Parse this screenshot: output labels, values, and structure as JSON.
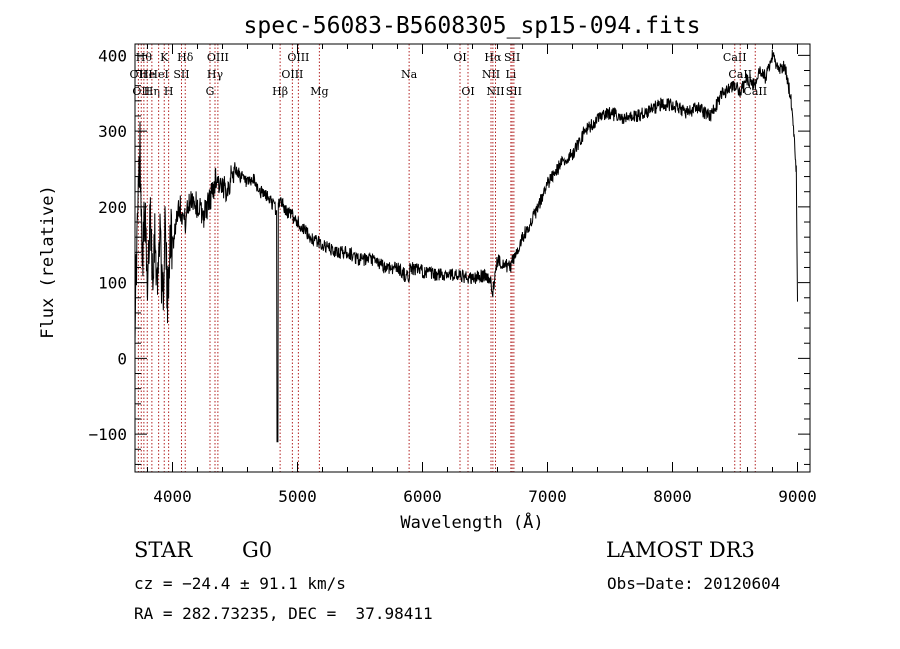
{
  "chart_data": {
    "type": "line",
    "title": "spec-56083-B5608305_sp15-094.fits",
    "xlabel": "Wavelength (Å)",
    "ylabel": "Flux (relative)",
    "xlim": [
      3700,
      9100
    ],
    "ylim": [
      -150,
      415
    ],
    "x_ticks": [
      4000,
      5000,
      6000,
      7000,
      8000,
      9000
    ],
    "y_ticks": [
      -100,
      0,
      100,
      200,
      300,
      400
    ],
    "x_tick_labels": [
      "4000",
      "5000",
      "6000",
      "7000",
      "8000",
      "9000"
    ],
    "y_tick_labels": [
      "−100",
      "0",
      "100",
      "200",
      "300",
      "400"
    ],
    "series": [
      {
        "name": "flux",
        "x": [
          3700,
          3720,
          3740,
          3760,
          3780,
          3800,
          3820,
          3840,
          3860,
          3880,
          3900,
          3920,
          3940,
          3960,
          3980,
          4000,
          4050,
          4100,
          4150,
          4200,
          4250,
          4300,
          4350,
          4400,
          4450,
          4500,
          4550,
          4600,
          4650,
          4700,
          4750,
          4800,
          4830,
          4840,
          4850,
          4870,
          4900,
          4950,
          5000,
          5100,
          5200,
          5300,
          5400,
          5500,
          5600,
          5700,
          5800,
          5890,
          5900,
          6000,
          6100,
          6200,
          6300,
          6400,
          6500,
          6550,
          6563,
          6580,
          6600,
          6700,
          6800,
          6900,
          7000,
          7100,
          7200,
          7300,
          7400,
          7500,
          7600,
          7700,
          7800,
          7900,
          8000,
          8100,
          8200,
          8300,
          8400,
          8500,
          8540,
          8600,
          8660,
          8700,
          8750,
          8800,
          8850,
          8900,
          8950,
          8970,
          8990,
          9000
        ],
        "y": [
          60,
          180,
          280,
          140,
          190,
          70,
          200,
          120,
          170,
          90,
          190,
          60,
          180,
          70,
          170,
          150,
          205,
          180,
          215,
          200,
          190,
          210,
          240,
          220,
          230,
          250,
          240,
          230,
          235,
          220,
          215,
          205,
          195,
          -110,
          205,
          210,
          195,
          190,
          180,
          160,
          150,
          140,
          140,
          130,
          130,
          120,
          120,
          105,
          120,
          115,
          110,
          112,
          108,
          105,
          110,
          100,
          85,
          110,
          130,
          120,
          160,
          190,
          230,
          255,
          270,
          300,
          315,
          325,
          315,
          320,
          325,
          335,
          335,
          325,
          330,
          320,
          350,
          360,
          350,
          370,
          360,
          380,
          370,
          400,
          380,
          385,
          340,
          300,
          250,
          75
        ]
      }
    ],
    "lines": [
      {
        "wave": 3727,
        "label": "OII",
        "row": 2
      },
      {
        "wave": 3750,
        "label": "OII",
        "row": 3
      },
      {
        "wave": 3771,
        "label": "Hθ",
        "row": 1
      },
      {
        "wave": 3798,
        "label": "He",
        "row": 2
      },
      {
        "wave": 3835,
        "label": "Hη",
        "row": 3
      },
      {
        "wave": 3889,
        "label": "HeI",
        "row": 2
      },
      {
        "wave": 3934,
        "label": "K",
        "row": 1
      },
      {
        "wave": 3969,
        "label": "H",
        "row": 3
      },
      {
        "wave": 4072,
        "label": "SII",
        "row": 2
      },
      {
        "wave": 4102,
        "label": "Hδ",
        "row": 1
      },
      {
        "wave": 4300,
        "label": "G",
        "row": 3
      },
      {
        "wave": 4340,
        "label": "Hγ",
        "row": 2
      },
      {
        "wave": 4363,
        "label": "OIII",
        "row": 1
      },
      {
        "wave": 4861,
        "label": "Hβ",
        "row": 3
      },
      {
        "wave": 4959,
        "label": "OIII",
        "row": 2
      },
      {
        "wave": 5007,
        "label": "OIII",
        "row": 1
      },
      {
        "wave": 5175,
        "label": "Mg",
        "row": 3
      },
      {
        "wave": 5893,
        "label": "Na",
        "row": 2
      },
      {
        "wave": 6300,
        "label": "OI",
        "row": 1
      },
      {
        "wave": 6364,
        "label": "OI",
        "row": 3
      },
      {
        "wave": 6548,
        "label": "NII",
        "row": 2
      },
      {
        "wave": 6563,
        "label": "Hα",
        "row": 1
      },
      {
        "wave": 6584,
        "label": "NII",
        "row": 3
      },
      {
        "wave": 6707,
        "label": "Li",
        "row": 2
      },
      {
        "wave": 6717,
        "label": "SII",
        "row": 1
      },
      {
        "wave": 6731,
        "label": "SII",
        "row": 3
      },
      {
        "wave": 8498,
        "label": "CaII",
        "row": 1
      },
      {
        "wave": 8542,
        "label": "CaII",
        "row": 2
      },
      {
        "wave": 8662,
        "label": "CaII",
        "row": 3
      }
    ]
  },
  "info": {
    "class": "STAR",
    "subclass": "G0",
    "survey": "LAMOST DR3",
    "cz": "cz = −24.4 ± 91.1 km/s",
    "obs_date": "Obs−Date: 20120604",
    "radec": "RA = 282.73235, DEC =  37.98411"
  },
  "colors": {
    "line_marker": "#b22222",
    "spectrum": "#000000"
  }
}
